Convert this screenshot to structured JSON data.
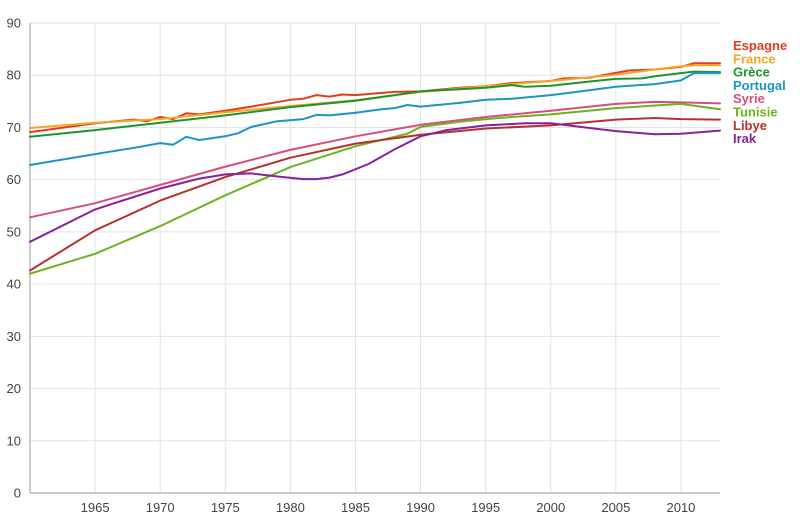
{
  "chart_data": {
    "type": "line",
    "title": "",
    "xlabel": "",
    "ylabel": "",
    "xlim": [
      1960,
      2013
    ],
    "ylim": [
      0,
      90
    ],
    "grid": true,
    "legend_placement": "top-right",
    "x_ticks": [
      1965,
      1970,
      1975,
      1980,
      1985,
      1990,
      1995,
      2000,
      2005,
      2010
    ],
    "y_ticks": [
      0,
      10,
      20,
      30,
      40,
      50,
      60,
      70,
      80,
      90
    ],
    "series": [
      {
        "name": "Espagne",
        "color": "#e03c1f",
        "points": [
          [
            1960,
            69.1
          ],
          [
            1965,
            70.8
          ],
          [
            1968,
            71.5
          ],
          [
            1969,
            71.2
          ],
          [
            1970,
            72.0
          ],
          [
            1971,
            71.6
          ],
          [
            1972,
            72.7
          ],
          [
            1973,
            72.5
          ],
          [
            1975,
            73.2
          ],
          [
            1977,
            74.0
          ],
          [
            1980,
            75.3
          ],
          [
            1981,
            75.5
          ],
          [
            1982,
            76.2
          ],
          [
            1983,
            75.9
          ],
          [
            1984,
            76.3
          ],
          [
            1985,
            76.2
          ],
          [
            1988,
            76.8
          ],
          [
            1990,
            76.9
          ],
          [
            1993,
            77.6
          ],
          [
            1995,
            77.9
          ],
          [
            1997,
            78.5
          ],
          [
            2000,
            78.9
          ],
          [
            2001,
            79.4
          ],
          [
            2003,
            79.5
          ],
          [
            2004,
            80.0
          ],
          [
            2006,
            80.9
          ],
          [
            2008,
            81.1
          ],
          [
            2010,
            81.6
          ],
          [
            2011,
            82.3
          ],
          [
            2013,
            82.3
          ]
        ]
      },
      {
        "name": "France",
        "color": "#f5a623",
        "points": [
          [
            1960,
            69.9
          ],
          [
            1965,
            70.9
          ],
          [
            1970,
            71.6
          ],
          [
            1975,
            72.9
          ],
          [
            1980,
            74.1
          ],
          [
            1985,
            75.2
          ],
          [
            1990,
            76.8
          ],
          [
            1995,
            77.9
          ],
          [
            2000,
            78.9
          ],
          [
            2005,
            80.1
          ],
          [
            2008,
            81.1
          ],
          [
            2010,
            81.7
          ],
          [
            2011,
            81.9
          ],
          [
            2013,
            81.9
          ]
        ]
      },
      {
        "name": "Grèce",
        "color": "#1e9430",
        "points": [
          [
            1960,
            68.2
          ],
          [
            1965,
            69.5
          ],
          [
            1970,
            70.9
          ],
          [
            1975,
            72.3
          ],
          [
            1980,
            73.9
          ],
          [
            1985,
            75.1
          ],
          [
            1988,
            76.2
          ],
          [
            1990,
            76.9
          ],
          [
            1993,
            77.3
          ],
          [
            1995,
            77.6
          ],
          [
            1997,
            78.1
          ],
          [
            1998,
            77.8
          ],
          [
            2000,
            78.0
          ],
          [
            2003,
            78.8
          ],
          [
            2005,
            79.3
          ],
          [
            2007,
            79.4
          ],
          [
            2008,
            79.8
          ],
          [
            2010,
            80.4
          ],
          [
            2011,
            80.7
          ],
          [
            2013,
            80.6
          ]
        ]
      },
      {
        "name": "Portugal",
        "color": "#1a96c4",
        "points": [
          [
            1960,
            62.8
          ],
          [
            1965,
            64.9
          ],
          [
            1968,
            66.1
          ],
          [
            1970,
            67.0
          ],
          [
            1971,
            66.7
          ],
          [
            1972,
            68.2
          ],
          [
            1973,
            67.6
          ],
          [
            1975,
            68.3
          ],
          [
            1976,
            68.9
          ],
          [
            1977,
            70.1
          ],
          [
            1979,
            71.2
          ],
          [
            1981,
            71.6
          ],
          [
            1982,
            72.4
          ],
          [
            1983,
            72.3
          ],
          [
            1985,
            72.8
          ],
          [
            1987,
            73.5
          ],
          [
            1988,
            73.7
          ],
          [
            1989,
            74.3
          ],
          [
            1990,
            74.0
          ],
          [
            1993,
            74.7
          ],
          [
            1995,
            75.3
          ],
          [
            1997,
            75.5
          ],
          [
            2000,
            76.2
          ],
          [
            2002,
            76.8
          ],
          [
            2005,
            77.8
          ],
          [
            2008,
            78.3
          ],
          [
            2010,
            79.0
          ],
          [
            2011,
            80.4
          ],
          [
            2013,
            80.4
          ]
        ]
      },
      {
        "name": "Syrie",
        "color": "#d94c7e",
        "points": [
          [
            1960,
            52.8
          ],
          [
            1965,
            55.5
          ],
          [
            1970,
            59.0
          ],
          [
            1975,
            62.5
          ],
          [
            1980,
            65.7
          ],
          [
            1985,
            68.3
          ],
          [
            1990,
            70.5
          ],
          [
            1995,
            72.0
          ],
          [
            2000,
            73.2
          ],
          [
            2005,
            74.5
          ],
          [
            2008,
            74.9
          ],
          [
            2010,
            74.8
          ],
          [
            2013,
            74.6
          ]
        ]
      },
      {
        "name": "Tunisie",
        "color": "#6db31e",
        "points": [
          [
            1960,
            42.0
          ],
          [
            1965,
            45.8
          ],
          [
            1970,
            51.1
          ],
          [
            1975,
            57.0
          ],
          [
            1980,
            62.4
          ],
          [
            1985,
            66.4
          ],
          [
            1989,
            68.8
          ],
          [
            1990,
            70.1
          ],
          [
            1993,
            71.1
          ],
          [
            1995,
            71.6
          ],
          [
            1997,
            72.0
          ],
          [
            2000,
            72.5
          ],
          [
            2005,
            73.7
          ],
          [
            2008,
            74.2
          ],
          [
            2010,
            74.5
          ],
          [
            2013,
            73.5
          ]
        ]
      },
      {
        "name": "Libye",
        "color": "#b5322c",
        "points": [
          [
            1960,
            42.6
          ],
          [
            1965,
            50.3
          ],
          [
            1970,
            56.0
          ],
          [
            1975,
            60.5
          ],
          [
            1980,
            64.2
          ],
          [
            1985,
            66.9
          ],
          [
            1990,
            68.6
          ],
          [
            1995,
            69.8
          ],
          [
            2000,
            70.4
          ],
          [
            2005,
            71.5
          ],
          [
            2008,
            71.8
          ],
          [
            2010,
            71.6
          ],
          [
            2013,
            71.5
          ]
        ]
      },
      {
        "name": "Irak",
        "color": "#8a1fa0",
        "points": [
          [
            1960,
            48.1
          ],
          [
            1965,
            54.3
          ],
          [
            1970,
            58.3
          ],
          [
            1973,
            60.2
          ],
          [
            1975,
            61.0
          ],
          [
            1977,
            61.2
          ],
          [
            1979,
            60.6
          ],
          [
            1981,
            60.1
          ],
          [
            1982,
            60.1
          ],
          [
            1983,
            60.4
          ],
          [
            1984,
            61.0
          ],
          [
            1986,
            63.0
          ],
          [
            1988,
            65.8
          ],
          [
            1990,
            68.3
          ],
          [
            1992,
            69.5
          ],
          [
            1995,
            70.4
          ],
          [
            1998,
            70.8
          ],
          [
            2000,
            70.8
          ],
          [
            2003,
            69.9
          ],
          [
            2005,
            69.3
          ],
          [
            2008,
            68.7
          ],
          [
            2010,
            68.8
          ],
          [
            2013,
            69.4
          ]
        ]
      }
    ]
  }
}
